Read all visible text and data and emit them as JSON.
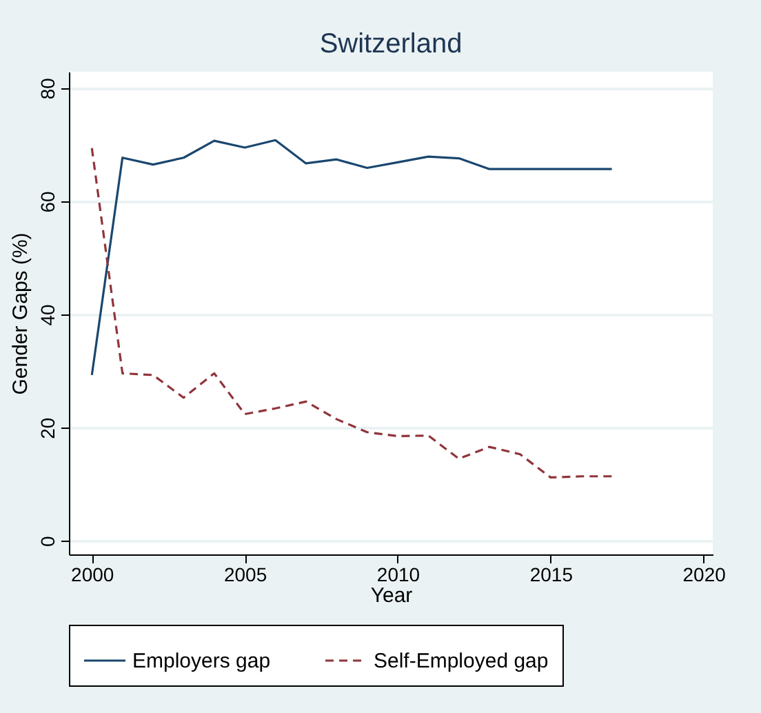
{
  "chart_data": {
    "type": "line",
    "title": "Switzerland",
    "xlabel": "Year",
    "ylabel": "Gender Gaps (%)",
    "x": [
      2000,
      2001,
      2002,
      2003,
      2004,
      2005,
      2006,
      2007,
      2008,
      2009,
      2010,
      2011,
      2012,
      2013,
      2014,
      2015,
      2016,
      2017
    ],
    "series": [
      {
        "name": "Employers gap",
        "color": "#1a476f",
        "line_style": "solid",
        "values": [
          29.3,
          67.7,
          66.5,
          67.7,
          70.7,
          69.5,
          70.8,
          66.7,
          67.4,
          65.9,
          66.9,
          67.9,
          67.6,
          65.7,
          65.7,
          65.7,
          65.7,
          65.7
        ]
      },
      {
        "name": "Self-Employed gap",
        "color": "#90353b",
        "line_style": "dashed",
        "values": [
          69.4,
          29.6,
          29.3,
          25.3,
          29.6,
          22.4,
          23.4,
          24.6,
          21.5,
          19.2,
          18.5,
          18.6,
          14.5,
          16.6,
          15.3,
          11.2,
          11.4,
          11.4
        ]
      }
    ],
    "xlim": [
      1999.25,
      2020.3
    ],
    "xticks": [
      2000,
      2005,
      2010,
      2015,
      2020
    ],
    "ylim": [
      -2.4,
      82.9
    ],
    "yticks": [
      0,
      20,
      40,
      60,
      80
    ],
    "grid": "y",
    "legend": "bottom",
    "marker": "none"
  }
}
